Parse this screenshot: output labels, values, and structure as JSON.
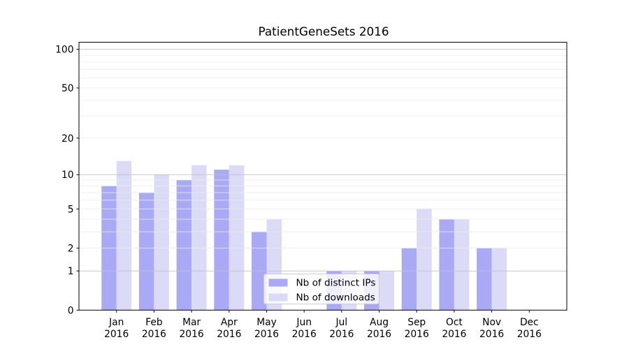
{
  "chart_data": {
    "type": "bar",
    "title": "PatientGeneSets 2016",
    "categories": [
      "Jan 2016",
      "Feb 2016",
      "Mar 2016",
      "Apr 2016",
      "May 2016",
      "Jun 2016",
      "Jul 2016",
      "Aug 2016",
      "Sep 2016",
      "Oct 2016",
      "Nov 2016",
      "Dec 2016"
    ],
    "series": [
      {
        "name": "Nb of distinct IPs",
        "color": "#a9a9f5",
        "values": [
          8,
          7,
          9,
          11,
          3,
          0,
          1,
          1,
          2,
          4,
          2,
          0
        ]
      },
      {
        "name": "Nb of downloads",
        "color": "#dbdaf7",
        "values": [
          13,
          10,
          12,
          12,
          4,
          0,
          1,
          1,
          5,
          4,
          2,
          0
        ]
      }
    ],
    "xlabel": "",
    "ylabel": "",
    "yscale": "log1p",
    "ylim": [
      0,
      113
    ],
    "yticks": [
      100,
      50,
      20,
      10,
      5,
      2,
      1,
      0
    ],
    "grid": {
      "on": true,
      "major_values": [
        100,
        10,
        1
      ],
      "minor_values": [
        90,
        80,
        70,
        60,
        50,
        40,
        30,
        20,
        9,
        8,
        7,
        6,
        5,
        4,
        3,
        2
      ],
      "major_color": "#c2c2c2",
      "minor_color": "#ebebeb"
    },
    "legend": {
      "position": "lower center",
      "entries": [
        "Nb of distinct IPs",
        "Nb of downloads"
      ]
    }
  },
  "style": {
    "background": "#ffffff",
    "text_color": "#000000",
    "axis_color": "#000000",
    "legend_bg": "rgba(255,255,255,0.8)",
    "legend_border": "#cccccc"
  }
}
